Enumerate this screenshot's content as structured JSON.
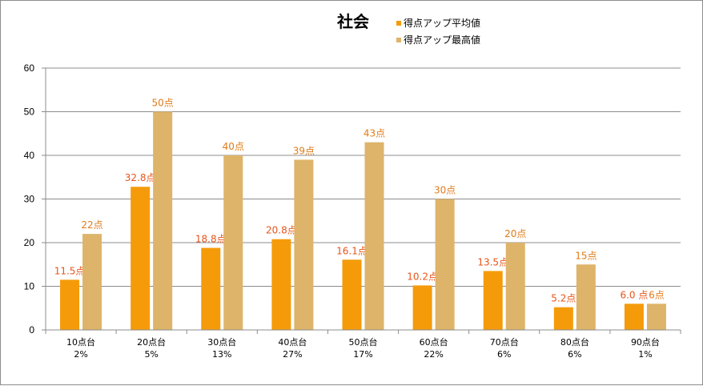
{
  "chart_data": {
    "type": "bar",
    "title": "社会",
    "categories": [
      [
        "10点台",
        "2%"
      ],
      [
        "20点台",
        "5%"
      ],
      [
        "30点台",
        "13%"
      ],
      [
        "40点台",
        "27%"
      ],
      [
        "50点台",
        "17%"
      ],
      [
        "60点台",
        "22%"
      ],
      [
        "70点台",
        "6%"
      ],
      [
        "80点台",
        "6%"
      ],
      [
        "90点台",
        "1%"
      ]
    ],
    "series": [
      {
        "name": "得点アップ平均値",
        "color": "#f59b0a",
        "values": [
          11.5,
          32.8,
          18.8,
          20.8,
          16.1,
          10.2,
          13.5,
          5.2,
          6.0
        ],
        "labels": [
          "11.5点",
          "32.8点",
          "18.8点",
          "20.8点",
          "16.1点",
          "10.2点",
          "13.5点",
          "5.2点",
          "6.0 点"
        ]
      },
      {
        "name": "得点アップ最高値",
        "color": "#ddb46a",
        "values": [
          22,
          50,
          40,
          39,
          43,
          30,
          20,
          15,
          6
        ],
        "labels": [
          "22点",
          "50点",
          "40点",
          "39点",
          "43点",
          "30点",
          "20点",
          "15点",
          "6点"
        ]
      }
    ],
    "ylim": [
      0,
      60
    ],
    "yticks": [
      0,
      10,
      20,
      30,
      40,
      50,
      60
    ],
    "grid": true,
    "legend": "top"
  }
}
